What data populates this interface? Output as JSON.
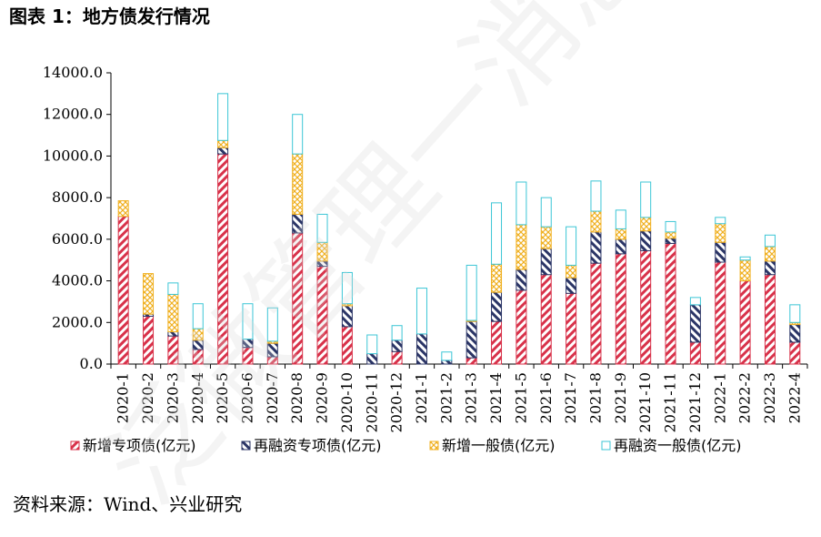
{
  "figure_title": "图表 1：地方债发行情况",
  "source_note": "资料来源：Wind、兴业研究",
  "watermark_text": "泛微管理一消息",
  "colors": {
    "new_special": "#d8324a",
    "refi_special": "#2b3566",
    "new_general": "#f0b020",
    "refi_general": "#3cc6d6"
  },
  "chart_data": {
    "type": "bar",
    "stacked": true,
    "categories": [
      "2020-1",
      "2020-2",
      "2020-3",
      "2020-4",
      "2020-5",
      "2020-6",
      "2020-7",
      "2020-8",
      "2020-9",
      "2020-10",
      "2020-11",
      "2020-12",
      "2021-1",
      "2021-2",
      "2021-3",
      "2021-4",
      "2021-5",
      "2021-6",
      "2021-7",
      "2021-8",
      "2021-9",
      "2021-10",
      "2021-11",
      "2021-12",
      "2022-1",
      "2022-2",
      "2022-3",
      "2022-4"
    ],
    "series": [
      {
        "name": "新增专项债(亿元)",
        "values": [
          7100,
          2300,
          1350,
          700,
          10100,
          800,
          350,
          6300,
          4700,
          1800,
          0,
          600,
          0,
          0,
          300,
          2050,
          3550,
          4300,
          3400,
          4850,
          5300,
          5450,
          5800,
          1050,
          4900,
          4000,
          4300,
          1050
        ]
      },
      {
        "name": "再融资专项债(亿元)",
        "values": [
          0,
          100,
          200,
          450,
          300,
          400,
          650,
          900,
          250,
          1000,
          500,
          550,
          1450,
          180,
          1750,
          1400,
          1000,
          1250,
          750,
          1500,
          700,
          950,
          250,
          1800,
          950,
          0,
          650,
          850
        ]
      },
      {
        "name": "新增一般债(亿元)",
        "values": [
          750,
          1950,
          1800,
          550,
          350,
          0,
          100,
          2900,
          900,
          100,
          0,
          0,
          0,
          0,
          50,
          1350,
          2150,
          1050,
          600,
          1000,
          500,
          650,
          300,
          0,
          900,
          1000,
          700,
          100
        ]
      },
      {
        "name": "再融资一般债(亿元)",
        "values": [
          0,
          0,
          550,
          1200,
          2250,
          1700,
          1600,
          1900,
          1350,
          1500,
          900,
          700,
          2200,
          400,
          2650,
          2950,
          2050,
          1400,
          1850,
          1450,
          900,
          1700,
          500,
          350,
          300,
          150,
          550,
          850
        ]
      }
    ],
    "y_ticks": [
      "0.0",
      "2000.0",
      "4000.0",
      "6000.0",
      "8000.0",
      "10000.0",
      "12000.0",
      "14000.0"
    ],
    "ylim": [
      0,
      14000
    ],
    "grid": false,
    "legend_position": "bottom"
  }
}
